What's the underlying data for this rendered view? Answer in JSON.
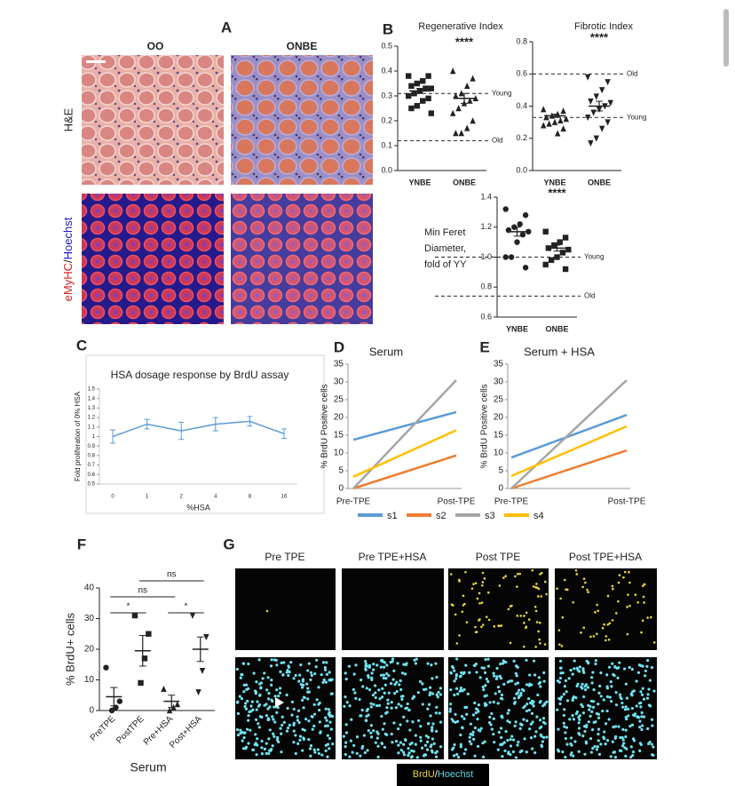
{
  "figure": {
    "panel_labels": [
      "A",
      "B",
      "C",
      "D",
      "E",
      "F",
      "G"
    ],
    "a_columns": [
      "OO",
      "ONBE"
    ],
    "a_row1": "H&E",
    "a_row2": [
      "eMyHC",
      "/",
      "Hoechst"
    ],
    "g_columns": [
      "Pre TPE",
      "Pre TPE+HSA",
      "Post TPE",
      "Post TPE+HSA"
    ],
    "g_legend": [
      "BrdU",
      "/",
      "Hoechst"
    ]
  },
  "chart_data": [
    {
      "type": "dotplot",
      "title": "Regenerative Index",
      "categories": [
        "YNBE",
        "ONBE"
      ],
      "groups": [
        {
          "marker": "square",
          "values": [
            0.38,
            0.38,
            0.36,
            0.35,
            0.34,
            0.33,
            0.33,
            0.32,
            0.31,
            0.3,
            0.29,
            0.28,
            0.26,
            0.25,
            0.23
          ],
          "mean": 0.32,
          "sem": 0.01
        },
        {
          "marker": "triangle",
          "values": [
            0.4,
            0.37,
            0.34,
            0.31,
            0.3,
            0.29,
            0.28,
            0.27,
            0.25,
            0.23,
            0.2,
            0.17,
            0.15,
            0.15
          ],
          "mean": 0.29,
          "sem": 0.02
        }
      ],
      "ylim": [
        0,
        0.5
      ],
      "yticks": [
        {
          "value": 0,
          "label": "0.0"
        },
        0.1,
        0.2,
        0.3,
        0.4,
        0.5
      ],
      "ref_lines": [
        {
          "label": "Young",
          "value": 0.31
        },
        {
          "label": "Old",
          "value": 0.12
        }
      ],
      "significance": "****",
      "color": "#222222"
    },
    {
      "type": "dotplot",
      "title": "Fibrotic Index",
      "categories": [
        "YNBE",
        "ONBE"
      ],
      "groups": [
        {
          "marker": "triangle",
          "values": [
            0.38,
            0.37,
            0.35,
            0.34,
            0.33,
            0.32,
            0.31,
            0.3,
            0.29,
            0.28,
            0.26,
            0.23
          ],
          "mean": 0.34,
          "sem": 0.01
        },
        {
          "marker": "triangle-down",
          "values": [
            0.58,
            0.55,
            0.5,
            0.46,
            0.43,
            0.42,
            0.4,
            0.38,
            0.36,
            0.33,
            0.3,
            0.26,
            0.2,
            0.17
          ],
          "mean": 0.4,
          "sem": 0.03
        }
      ],
      "ylim": [
        0,
        0.8
      ],
      "yticks": [
        {
          "value": 0,
          "label": "0.0"
        },
        0.2,
        0.4,
        0.6,
        0.8
      ],
      "ref_lines": [
        {
          "label": "Old",
          "value": 0.6
        },
        {
          "label": "Young",
          "value": 0.33
        }
      ],
      "significance": "****",
      "color": "#222222"
    },
    {
      "type": "dotplot",
      "ylabel_lines": [
        "Min Feret",
        "Diameter,",
        "fold of YY"
      ],
      "categories": [
        "YNBE",
        "ONBE"
      ],
      "groups": [
        {
          "marker": "circle",
          "values": [
            1.32,
            1.28,
            1.22,
            1.2,
            1.18,
            1.17,
            1.15,
            1.1,
            1.0,
            1.0,
            0.93
          ],
          "mean": 1.17,
          "sem": 0.03
        },
        {
          "marker": "square",
          "values": [
            1.17,
            1.13,
            1.1,
            1.08,
            1.06,
            1.05,
            1.03,
            1.0,
            0.98,
            0.95,
            0.92
          ],
          "mean": 1.06,
          "sem": 0.02
        }
      ],
      "ylim": [
        0.6,
        1.4
      ],
      "yticks": [
        0.6,
        0.8,
        {
          "value": 1,
          "label": "1.0"
        },
        1.2,
        1.4
      ],
      "ref_lines": [
        {
          "label": "Young",
          "value": 1
        },
        {
          "label": "Old",
          "value": 0.74
        }
      ],
      "significance": "****",
      "color": "#222222"
    },
    {
      "type": "line",
      "title": "HSA dosage response by BrdU assay",
      "xlabel": "%HSA",
      "ylabel": "Fold proliferation of 0% HSA",
      "categories": [
        "0",
        "1",
        "2",
        "4",
        "8",
        "16"
      ],
      "series": [
        {
          "color": "#5b9bd5",
          "values": [
            1.0,
            1.13,
            1.06,
            1.13,
            1.16,
            1.03
          ],
          "errors": [
            0.07,
            0.05,
            0.09,
            0.07,
            0.05,
            0.05
          ]
        }
      ],
      "ylim": [
        0.5,
        1.5
      ],
      "yticks": [
        0.5,
        0.6,
        0.7,
        0.8,
        0.9,
        1,
        1.1,
        1.2,
        1.3,
        1.4,
        1.5
      ]
    },
    {
      "type": "line",
      "title": "Serum",
      "ylabel": "% BrdU Positive cells",
      "categories": [
        "Pre-TPE",
        "Post-TPE"
      ],
      "series": [
        {
          "name": "s1",
          "color": "#5b9bd5",
          "values": [
            13.7,
            21.5
          ]
        },
        {
          "name": "s2",
          "color": "#ed7d31",
          "values": [
            0,
            9.3
          ]
        },
        {
          "name": "s3",
          "color": "#a5a5a5",
          "values": [
            0,
            30.5
          ]
        },
        {
          "name": "s4",
          "color": "#ffc000",
          "values": [
            3.3,
            16.4
          ]
        }
      ],
      "ylim": [
        0,
        35
      ],
      "yticks": [
        0,
        5,
        10,
        15,
        20,
        25,
        30,
        35
      ],
      "legend": "bottom"
    },
    {
      "type": "line",
      "title": "Serum + HSA",
      "ylabel": "% BrdU Positive cells",
      "categories": [
        "Pre-TPE",
        "Post-TPE"
      ],
      "series": [
        {
          "color": "#5b9bd5",
          "values": [
            8.7,
            20.7
          ]
        },
        {
          "color": "#ed7d31",
          "values": [
            0,
            10.7
          ]
        },
        {
          "color": "#a5a5a5",
          "values": [
            0,
            30.5
          ]
        },
        {
          "color": "#ffc000",
          "values": [
            3.5,
            17.5
          ]
        }
      ],
      "ylim": [
        0,
        35
      ],
      "yticks": [
        0,
        5,
        10,
        15,
        20,
        25,
        30,
        35
      ]
    },
    {
      "type": "dotplot",
      "ylabel": "% BrdU+ cells",
      "xlabel": "Serum",
      "categories": [
        "PreTPE",
        "PostTPE",
        "Pre+HSA",
        "Post+HSA"
      ],
      "groups": [
        {
          "marker": "circle",
          "values": [
            14,
            3,
            1,
            0
          ],
          "mean": 4.5,
          "sem": 3
        },
        {
          "marker": "square",
          "values": [
            31,
            25,
            17,
            9
          ],
          "mean": 19.5,
          "sem": 5
        },
        {
          "marker": "triangle",
          "values": [
            7,
            2,
            1,
            0
          ],
          "mean": 3,
          "sem": 2
        },
        {
          "marker": "triangle-down",
          "values": [
            31,
            24,
            13,
            6
          ],
          "mean": 20,
          "sem": 4
        }
      ],
      "ylim": [
        0,
        40
      ],
      "yticks": [
        0,
        10,
        20,
        30,
        40
      ],
      "significance": [
        "*",
        "*",
        "ns",
        "ns"
      ],
      "color": "#222222"
    }
  ]
}
